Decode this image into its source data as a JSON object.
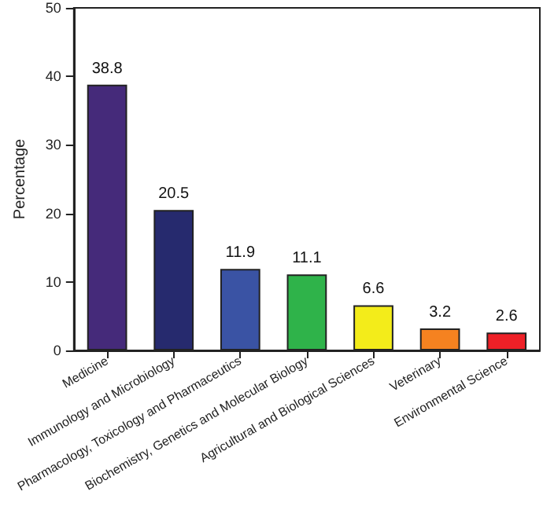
{
  "chart_data": {
    "type": "bar",
    "ylabel": "Percentage",
    "categories": [
      "Medicine",
      "Immunology and Microbiology",
      "Pharmacology, Toxicology and Pharmaceutics",
      "Biochemistry, Genetics and Molecular Biology",
      "Agricultural and Biological Sciences",
      "Veterinary",
      "Environmental Science"
    ],
    "values": [
      38.8,
      20.5,
      11.9,
      11.1,
      6.6,
      3.2,
      2.6
    ],
    "colors": [
      "#452a7a",
      "#262a6e",
      "#3a53a4",
      "#2fb34a",
      "#f3ec1a",
      "#f58220",
      "#ee2027"
    ],
    "ylim": [
      0,
      50
    ],
    "yticks": [
      0,
      10,
      20,
      30,
      40,
      50
    ],
    "grid": false,
    "data_labels": true
  }
}
